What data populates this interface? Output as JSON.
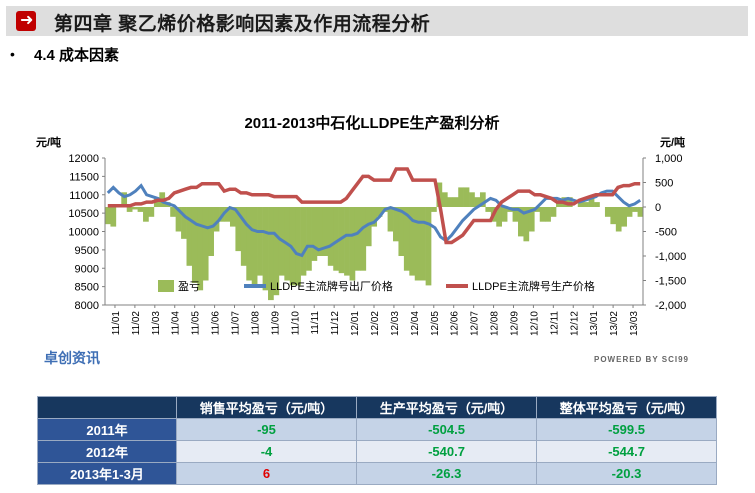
{
  "header": {
    "icon": "arrow-right-icon",
    "title": "第四章 聚乙烯价格影响因素及作用流程分析"
  },
  "section": {
    "bullet": "•",
    "title": "4.4 成本因素"
  },
  "chart_data": {
    "type": "bar+line",
    "title": "2011-2013中石化LLDPE生产盈利分析",
    "left_axis": {
      "label": "元/吨",
      "min": 8000,
      "max": 12000,
      "ticks": [
        "12000",
        "11500",
        "11000",
        "10500",
        "10000",
        "9500",
        "9000",
        "8500",
        "8000"
      ]
    },
    "right_axis": {
      "label": "元/吨",
      "min": -2000,
      "max": 1000,
      "ticks": [
        "1,000",
        "500",
        "0",
        "-500",
        "-1,000",
        "-1,500",
        "-2,000"
      ]
    },
    "x_ticks": [
      "11/01",
      "11/02",
      "11/03",
      "11/04",
      "11/05",
      "11/06",
      "11/07",
      "11/08",
      "11/09",
      "11/10",
      "11/11",
      "11/12",
      "12/01",
      "12/02",
      "12/03",
      "12/04",
      "12/05",
      "12/06",
      "12/07",
      "12/08",
      "12/09",
      "12/10",
      "12/11",
      "12/12",
      "13/01",
      "13/02",
      "13/03"
    ],
    "legend": [
      "盈亏",
      "LLDPE主流牌号出厂价格",
      "LLDPE主流牌号生产价格"
    ],
    "legend_position": "bottom-inside",
    "colors": {
      "profit": "#9bbb59",
      "factory_price": "#4f81bd",
      "production_price": "#c0504d"
    },
    "series": [
      {
        "name": "盈亏",
        "axis": "right",
        "values": [
          -350,
          -400,
          50,
          300,
          -100,
          -50,
          -100,
          -300,
          -200,
          200,
          300,
          100,
          -200,
          -500,
          -650,
          -1200,
          -1550,
          -1700,
          -1500,
          -1000,
          -500,
          -300,
          -300,
          -400,
          -900,
          -1200,
          -1500,
          -1600,
          -1400,
          -1700,
          -1900,
          -1800,
          -1400,
          -1500,
          -1600,
          -1600,
          -1400,
          -1300,
          -1100,
          -1000,
          -1000,
          -1200,
          -1300,
          -1350,
          -1400,
          -1500,
          -1300,
          -1300,
          -800,
          -400,
          -200,
          -100,
          -500,
          -700,
          -1000,
          -1300,
          -1400,
          -1500,
          -1500,
          -1600,
          -100,
          500,
          300,
          200,
          200,
          400,
          400,
          300,
          200,
          300,
          -100,
          -300,
          -400,
          -300,
          -100,
          -300,
          -600,
          -700,
          -500,
          -100,
          -300,
          -300,
          -200,
          100,
          200,
          200,
          0,
          100,
          100,
          200,
          100,
          0,
          -200,
          -350,
          -500,
          -400,
          -200,
          -100,
          -200
        ]
      },
      {
        "name": "LLDPE主流牌号出厂价格",
        "axis": "left",
        "values": [
          11050,
          11200,
          11050,
          10950,
          11000,
          11100,
          11250,
          11000,
          10950,
          10900,
          10800,
          10750,
          10700,
          10550,
          10400,
          10300,
          10200,
          10150,
          10100,
          10150,
          10300,
          10500,
          10650,
          10600,
          10400,
          10200,
          10050,
          10000,
          10000,
          9950,
          9950,
          9800,
          9700,
          9600,
          9400,
          9350,
          9600,
          9600,
          9500,
          9550,
          9600,
          9700,
          9800,
          9900,
          9900,
          9950,
          10100,
          10200,
          10250,
          10400,
          10600,
          10650,
          10600,
          10550,
          10450,
          10300,
          10250,
          10250,
          10200,
          10100,
          9850,
          9750,
          9900,
          10100,
          10300,
          10450,
          10600,
          10700,
          10800,
          10900,
          10850,
          10700,
          10650,
          10600,
          10600,
          10500,
          10550,
          10600,
          10750,
          10900,
          10900,
          10900,
          10850,
          10900,
          10850,
          10800,
          10850,
          10900,
          10950,
          11050,
          11100,
          11100,
          10950,
          10800,
          10700,
          10750,
          10850
        ]
      },
      {
        "name": "LLDPE主流牌号生产价格",
        "axis": "left",
        "values": [
          10700,
          10700,
          10700,
          10700,
          10700,
          10750,
          10750,
          10800,
          10800,
          10850,
          10850,
          10900,
          11050,
          11100,
          11150,
          11200,
          11200,
          11300,
          11300,
          11300,
          11300,
          11100,
          11150,
          11150,
          11050,
          11050,
          11000,
          11000,
          11000,
          11000,
          10950,
          10950,
          10950,
          10950,
          10950,
          10800,
          10800,
          10800,
          10800,
          10800,
          10800,
          10800,
          10800,
          10900,
          11100,
          11300,
          11500,
          11500,
          11400,
          11400,
          11400,
          11400,
          11700,
          11700,
          11700,
          11400,
          11400,
          11400,
          11400,
          11400,
          10600,
          9700,
          9700,
          9800,
          9900,
          10100,
          10300,
          10300,
          10300,
          10300,
          10600,
          10800,
          10900,
          11000,
          11100,
          11100,
          11100,
          11000,
          11000,
          10950,
          10900,
          10800,
          10800,
          10750,
          10750,
          10850,
          10900,
          10950,
          11000,
          11000,
          11000,
          11000,
          11200,
          11250,
          11250,
          11300,
          11300
        ]
      }
    ]
  },
  "watermark": {
    "left": "卓创资讯",
    "right": "POWERED BY SCI99"
  },
  "table": {
    "headers": [
      "",
      "销售平均盈亏（元/吨）",
      "生产平均盈亏（元/吨）",
      "整体平均盈亏（元/吨）"
    ],
    "rows": [
      {
        "label": "2011年",
        "cells": [
          "-95",
          "-504.5",
          "-599.5"
        ]
      },
      {
        "label": "2012年",
        "cells": [
          "-4",
          "-540.7",
          "-544.7"
        ]
      },
      {
        "label": "2013年1-3月",
        "cells": [
          "6",
          "-26.3",
          "-20.3"
        ]
      }
    ]
  }
}
